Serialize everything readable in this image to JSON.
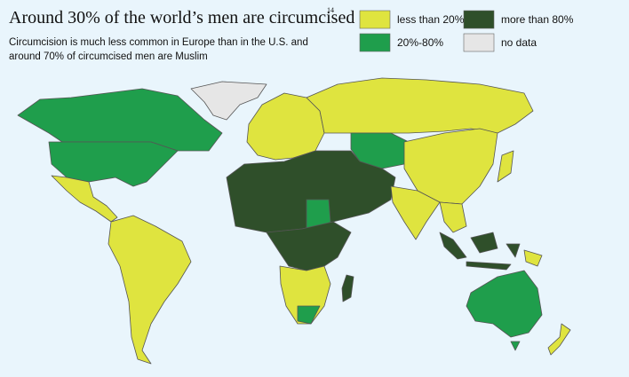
{
  "header": {
    "title": "Around 30% of the world’s men are circumcised",
    "footnote": "14",
    "subtitle": [
      "Circumcision is much less common in Europe than in the U.S. and",
      "around 70% of circumcised men are Muslim"
    ]
  },
  "legend": [
    {
      "label": "less than 20%",
      "color": "#dfe43f"
    },
    {
      "label": "20%-80%",
      "color": "#1f9e4c"
    },
    {
      "label": "more than 80%",
      "color": "#2f4f2a"
    },
    {
      "label": "no data",
      "color": "#e6e6e6"
    }
  ]
}
